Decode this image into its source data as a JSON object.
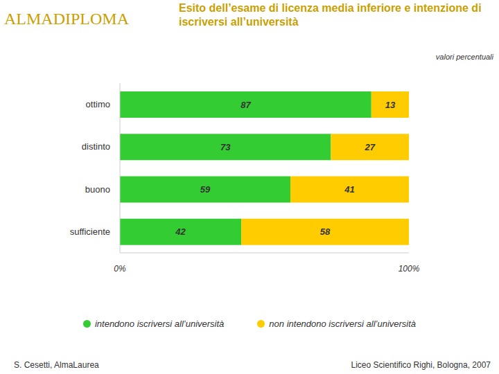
{
  "chart_data": {
    "type": "bar",
    "title": "Esito dell’esame di licenza media inferiore e intenzione di iscriversi all’università",
    "subtitle": "valori percentuali",
    "logo": "ALMADIPLOMA",
    "annotations": [
      "S. Cesetti, AlmaLaurea",
      "Liceo Scientifico Righi, Bologna, 2007"
    ],
    "orientation": "horizontal",
    "stacked": true,
    "data_labels": true,
    "categories": [
      "ottimo",
      "distinto",
      "buono",
      "sufficiente"
    ],
    "series": [
      {
        "name": "intendono iscriversi all’università",
        "color": "#33cc33",
        "values": [
          87,
          73,
          59,
          42
        ]
      },
      {
        "name": "non intendono iscriversi all’università",
        "color": "#ffcc00",
        "values": [
          13,
          27,
          41,
          58
        ]
      }
    ],
    "xlim": [
      0,
      100
    ],
    "xticks": [
      {
        "value": 0,
        "label": "0%"
      },
      {
        "value": 100,
        "label": "100%"
      }
    ],
    "legend": "bottom"
  }
}
